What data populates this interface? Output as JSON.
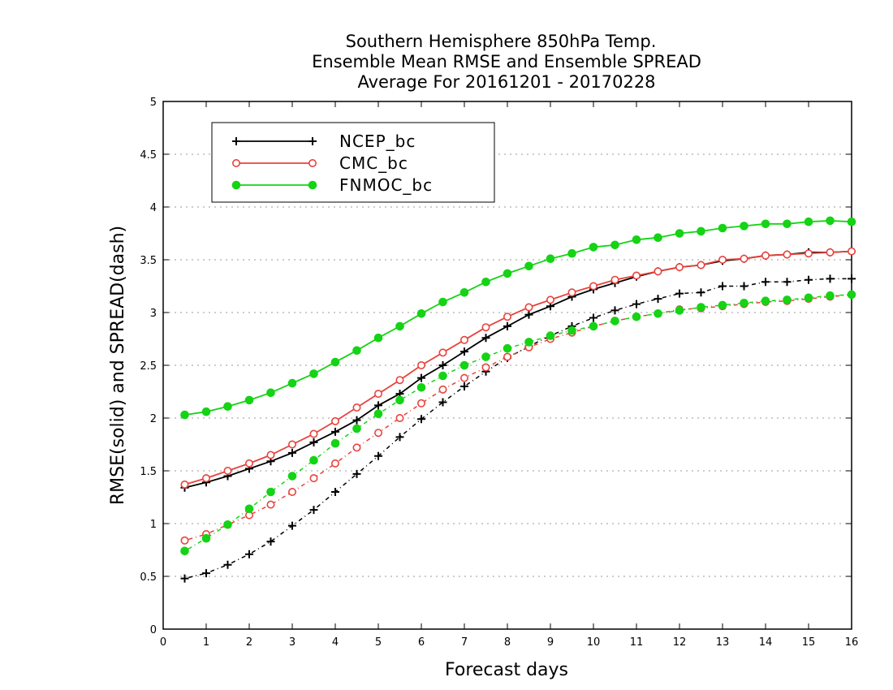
{
  "chart_data": {
    "type": "line",
    "title": [
      "Southern Hemisphere 850hPa Temp.",
      "Ensemble Mean RMSE and Ensemble SPREAD",
      "Average For 20161201 - 20170228"
    ],
    "xlabel": "Forecast days",
    "ylabel": "RMSE(solid) and SPREAD(dash)",
    "xlim": [
      0,
      16
    ],
    "ylim": [
      0,
      5
    ],
    "xticks": [
      0,
      1,
      2,
      3,
      4,
      5,
      6,
      7,
      8,
      9,
      10,
      11,
      12,
      13,
      14,
      15,
      16
    ],
    "yticks": [
      0,
      0.5,
      1,
      1.5,
      2,
      2.5,
      3,
      3.5,
      4,
      4.5,
      5
    ],
    "grid": "horizontal dotted",
    "legend_position": "top-left",
    "x": [
      0.5,
      1,
      1.5,
      2,
      2.5,
      3,
      3.5,
      4,
      4.5,
      5,
      5.5,
      6,
      6.5,
      7,
      7.5,
      8,
      8.5,
      9,
      9.5,
      10,
      10.5,
      11,
      11.5,
      12,
      12.5,
      13,
      13.5,
      14,
      14.5,
      15,
      15.5,
      16
    ],
    "series": [
      {
        "name": "NCEP_bc",
        "color": "#000000",
        "marker": "plus",
        "rmse": [
          1.34,
          1.39,
          1.45,
          1.52,
          1.59,
          1.67,
          1.77,
          1.87,
          1.98,
          2.12,
          2.23,
          2.38,
          2.5,
          2.63,
          2.76,
          2.87,
          2.98,
          3.06,
          3.15,
          3.22,
          3.28,
          3.34,
          3.39,
          3.43,
          3.45,
          3.49,
          3.51,
          3.54,
          3.55,
          3.57,
          3.57,
          3.58
        ],
        "spread": [
          0.48,
          0.53,
          0.61,
          0.71,
          0.83,
          0.98,
          1.13,
          1.3,
          1.47,
          1.64,
          1.82,
          1.99,
          2.15,
          2.3,
          2.44,
          2.57,
          2.68,
          2.78,
          2.87,
          2.95,
          3.02,
          3.08,
          3.13,
          3.18,
          3.19,
          3.25,
          3.25,
          3.29,
          3.29,
          3.31,
          3.32,
          3.32
        ]
      },
      {
        "name": "CMC_bc",
        "color": "#e8423c",
        "marker": "open-circle",
        "rmse": [
          1.37,
          1.43,
          1.5,
          1.57,
          1.65,
          1.75,
          1.85,
          1.97,
          2.1,
          2.23,
          2.36,
          2.5,
          2.62,
          2.74,
          2.86,
          2.96,
          3.05,
          3.12,
          3.19,
          3.25,
          3.31,
          3.35,
          3.39,
          3.43,
          3.45,
          3.5,
          3.51,
          3.54,
          3.55,
          3.56,
          3.57,
          3.58
        ],
        "spread": [
          0.84,
          0.9,
          0.99,
          1.08,
          1.18,
          1.3,
          1.43,
          1.57,
          1.72,
          1.86,
          2.0,
          2.14,
          2.27,
          2.38,
          2.48,
          2.58,
          2.67,
          2.75,
          2.81,
          2.87,
          2.92,
          2.96,
          2.99,
          3.03,
          3.04,
          3.06,
          3.08,
          3.1,
          3.11,
          3.13,
          3.15,
          3.17
        ]
      },
      {
        "name": "FNMOC_bc",
        "color": "#15d315",
        "marker": "filled-circle",
        "rmse": [
          2.03,
          2.06,
          2.11,
          2.17,
          2.24,
          2.33,
          2.42,
          2.53,
          2.64,
          2.76,
          2.87,
          2.99,
          3.1,
          3.19,
          3.29,
          3.37,
          3.44,
          3.51,
          3.56,
          3.62,
          3.64,
          3.69,
          3.71,
          3.75,
          3.77,
          3.8,
          3.82,
          3.84,
          3.84,
          3.86,
          3.87,
          3.86
        ],
        "spread": [
          0.74,
          0.86,
          0.99,
          1.14,
          1.3,
          1.45,
          1.6,
          1.76,
          1.9,
          2.04,
          2.17,
          2.29,
          2.4,
          2.5,
          2.58,
          2.66,
          2.72,
          2.78,
          2.83,
          2.87,
          2.92,
          2.96,
          2.99,
          3.02,
          3.05,
          3.07,
          3.09,
          3.11,
          3.12,
          3.14,
          3.16,
          3.17
        ]
      }
    ]
  }
}
